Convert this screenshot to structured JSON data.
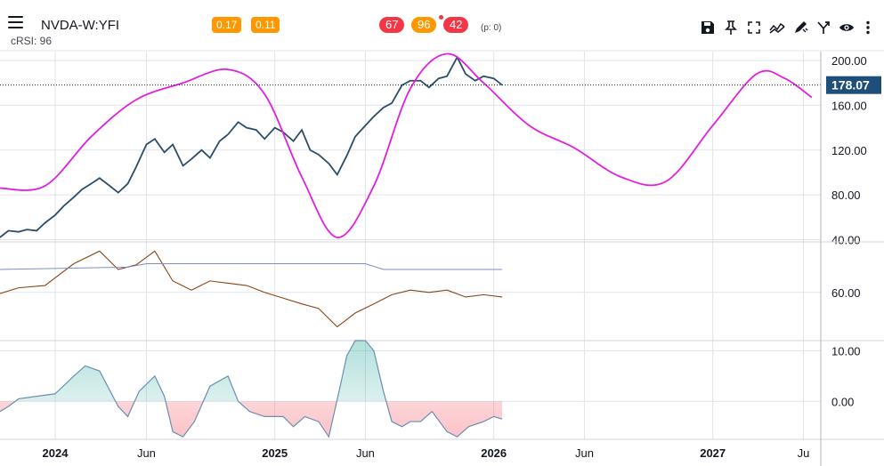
{
  "header": {
    "ticker": "NVDA-W:YFI",
    "indicator_label": "cRSI: 96",
    "badges_left": [
      {
        "text": "0.17",
        "color": "#ff9800"
      },
      {
        "text": "0.11",
        "color": "#ff9800"
      }
    ],
    "badges_center": [
      {
        "text": "67",
        "color": "#f23645"
      },
      {
        "text": "96",
        "color": "#ff9800"
      },
      {
        "text": "42",
        "color": "#f23645"
      }
    ],
    "p_count": "(p: 0)",
    "toolbar_icons": [
      "save-icon",
      "pin-icon",
      "fullscreen-icon",
      "trend-icon",
      "draw-icon",
      "compare-icon",
      "eye-icon",
      "more-vertical-icon"
    ]
  },
  "chart_data": [
    {
      "type": "line",
      "pane": "price",
      "y_ticks": [
        "200.00",
        "160.00",
        "120.00",
        "80.00",
        "40.00"
      ],
      "y_tick_values": [
        200,
        160,
        120,
        80,
        40
      ],
      "ylim": [
        38,
        208
      ],
      "last_price_label": "178.07",
      "last_price": 178.07,
      "series": [
        {
          "color": "#2a4d69",
          "x": [
            "2023-10-01",
            "2023-10-15",
            "2023-11-01",
            "2023-11-15",
            "2023-12-01",
            "2023-12-15",
            "2024-01-01",
            "2024-01-15",
            "2024-02-01",
            "2024-02-15",
            "2024-03-01",
            "2024-03-15",
            "2024-04-01",
            "2024-04-15",
            "2024-05-01",
            "2024-05-15",
            "2024-06-01",
            "2024-06-15",
            "2024-07-01",
            "2024-07-15",
            "2024-08-01",
            "2024-08-15",
            "2024-09-01",
            "2024-09-15",
            "2024-10-01",
            "2024-10-15",
            "2024-11-01",
            "2024-11-15",
            "2024-12-01",
            "2024-12-15",
            "2025-01-01",
            "2025-01-15",
            "2025-02-01",
            "2025-02-15",
            "2025-03-01",
            "2025-03-15",
            "2025-04-01",
            "2025-04-15",
            "2025-05-01",
            "2025-05-15",
            "2025-06-01",
            "2025-06-15",
            "2025-07-01",
            "2025-07-15",
            "2025-08-01",
            "2025-08-15",
            "2025-09-01",
            "2025-09-15",
            "2025-10-01",
            "2025-10-15",
            "2025-11-01",
            "2025-11-15",
            "2025-12-01",
            "2025-12-15",
            "2026-01-01",
            "2026-01-15"
          ],
          "y": [
            42,
            48,
            47,
            49,
            48,
            55,
            62,
            70,
            78,
            85,
            90,
            95,
            88,
            82,
            90,
            105,
            125,
            130,
            118,
            125,
            106,
            112,
            120,
            113,
            128,
            134,
            145,
            140,
            138,
            130,
            140,
            136,
            128,
            138,
            120,
            116,
            108,
            98,
            115,
            132,
            142,
            150,
            158,
            162,
            178,
            182,
            182,
            176,
            184,
            186,
            203,
            188,
            182,
            186,
            184,
            178.07
          ]
        },
        {
          "color": "#e020e0",
          "x": [
            "2023-10-01",
            "2023-12-15",
            "2024-03-01",
            "2024-05-15",
            "2024-08-01",
            "2024-10-15",
            "2024-12-15",
            "2025-02-15",
            "2025-04-15",
            "2025-06-15",
            "2025-08-15",
            "2025-10-15",
            "2025-12-15",
            "2026-03-01",
            "2026-05-15",
            "2026-08-01",
            "2026-10-15",
            "2027-01-01",
            "2027-03-15",
            "2027-05-01",
            "2027-06-15"
          ],
          "y": [
            86,
            88,
            132,
            165,
            180,
            192,
            170,
            96,
            42,
            88,
            175,
            206,
            180,
            142,
            122,
            96,
            92,
            142,
            188,
            184,
            167
          ]
        }
      ]
    },
    {
      "type": "line",
      "pane": "crsi",
      "y_ticks": [
        "60.00"
      ],
      "y_tick_values": [
        60
      ],
      "ylim": [
        18,
        104
      ],
      "series": [
        {
          "color": "#8b4513",
          "x": [
            "2023-10-01",
            "2023-11-01",
            "2023-12-15",
            "2024-02-01",
            "2024-03-15",
            "2024-04-15",
            "2024-05-15",
            "2024-06-15",
            "2024-07-15",
            "2024-08-15",
            "2024-09-15",
            "2024-10-15",
            "2024-11-15",
            "2024-12-15",
            "2025-01-15",
            "2025-02-15",
            "2025-03-15",
            "2025-04-15",
            "2025-05-15",
            "2025-06-15",
            "2025-07-15",
            "2025-08-15",
            "2025-09-15",
            "2025-10-15",
            "2025-11-15",
            "2025-12-15",
            "2026-01-15"
          ],
          "y": [
            59,
            64,
            66,
            85,
            96,
            80,
            84,
            96,
            70,
            62,
            70,
            68,
            66,
            60,
            55,
            50,
            46,
            30,
            42,
            50,
            58,
            62,
            60,
            62,
            56,
            58,
            56
          ]
        },
        {
          "color": "#7b8ec8",
          "x": [
            "2023-10-01",
            "2024-05-01",
            "2024-06-01",
            "2025-06-01",
            "2025-07-01",
            "2026-01-15"
          ],
          "y": [
            80,
            82,
            85,
            85,
            80,
            80
          ]
        },
        {
          "color": "#7b8ec8",
          "x": [
            "2023-10-01",
            "2026-01-15"
          ],
          "y": [
            18,
            18
          ]
        }
      ]
    },
    {
      "type": "area",
      "pane": "oscillator",
      "y_ticks": [
        "10.00",
        "0.00"
      ],
      "y_tick_values": [
        10,
        0
      ],
      "ylim": [
        -7.5,
        12
      ],
      "positive_color": "#26a69a",
      "negative_color": "#f23645",
      "line_color": "#6b8fb0",
      "series": [
        {
          "x": [
            "2023-10-01",
            "2023-10-15",
            "2023-11-01",
            "2023-12-01",
            "2024-01-01",
            "2024-02-01",
            "2024-02-20",
            "2024-03-15",
            "2024-04-15",
            "2024-05-01",
            "2024-05-20",
            "2024-06-15",
            "2024-07-01",
            "2024-07-15",
            "2024-08-01",
            "2024-08-20",
            "2024-09-15",
            "2024-10-15",
            "2024-11-01",
            "2024-11-20",
            "2024-12-15",
            "2025-01-15",
            "2025-02-01",
            "2025-02-20",
            "2025-03-15",
            "2025-04-01",
            "2025-04-20",
            "2025-05-01",
            "2025-05-15",
            "2025-06-01",
            "2025-06-15",
            "2025-07-01",
            "2025-07-15",
            "2025-08-01",
            "2025-08-15",
            "2025-09-01",
            "2025-09-20",
            "2025-10-15",
            "2025-11-01",
            "2025-11-20",
            "2025-12-15",
            "2026-01-01",
            "2026-01-15"
          ],
          "y": [
            -2,
            -1,
            0.5,
            1,
            1.5,
            5,
            7,
            6,
            -1,
            -3,
            2,
            5,
            1,
            -6,
            -7,
            -4,
            3,
            5,
            0,
            -2,
            -3,
            -3,
            -5,
            -3,
            -4,
            -7,
            3,
            9,
            12,
            12,
            10,
            2,
            -4,
            -5,
            -4,
            -4,
            -2,
            -6,
            -7,
            -5,
            -4,
            -3,
            -3.5
          ]
        }
      ]
    }
  ],
  "x_axis": {
    "ticks": [
      {
        "label": "2024",
        "x": "2024-01-01",
        "bold": true
      },
      {
        "label": "Jun",
        "x": "2024-06-01",
        "bold": false
      },
      {
        "label": "2025",
        "x": "2025-01-01",
        "bold": true
      },
      {
        "label": "Jun",
        "x": "2025-06-01",
        "bold": false
      },
      {
        "label": "2026",
        "x": "2026-01-01",
        "bold": true
      },
      {
        "label": "Jun",
        "x": "2026-06-01",
        "bold": false
      },
      {
        "label": "2027",
        "x": "2027-01-01",
        "bold": true
      },
      {
        "label": "Ju",
        "x": "2027-06-01",
        "bold": false
      }
    ],
    "range": [
      "2023-10-01",
      "2027-06-30"
    ]
  },
  "colors": {
    "grid": "#e0e3eb",
    "axis_text": "#131722",
    "last_price_bg": "#1f4e79"
  }
}
